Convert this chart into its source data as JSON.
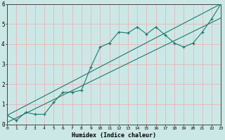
{
  "xlabel": "Humidex (Indice chaleur)",
  "xlim": [
    0,
    23
  ],
  "ylim": [
    0,
    6
  ],
  "xticks": [
    0,
    1,
    2,
    3,
    4,
    5,
    6,
    7,
    8,
    9,
    10,
    11,
    12,
    13,
    14,
    15,
    16,
    17,
    18,
    19,
    20,
    21,
    22,
    23
  ],
  "yticks": [
    0,
    1,
    2,
    3,
    4,
    5,
    6
  ],
  "bg_color": "#cce8e6",
  "grid_color": "#e8b4b8",
  "line_color": "#1a7a6e",
  "wavy_x": [
    0,
    1,
    2,
    3,
    4,
    5,
    6,
    7,
    8,
    9,
    10,
    11,
    12,
    13,
    14,
    15,
    16,
    17,
    18,
    19,
    20,
    21,
    22,
    23
  ],
  "wavy_y": [
    0.45,
    0.2,
    0.6,
    0.5,
    0.5,
    1.1,
    1.6,
    1.6,
    1.7,
    2.85,
    3.85,
    4.05,
    4.6,
    4.55,
    4.85,
    4.5,
    4.85,
    4.45,
    4.05,
    3.85,
    4.05,
    4.6,
    5.25,
    6.0
  ],
  "trend1_x": [
    0,
    23
  ],
  "trend1_y": [
    0.45,
    6.0
  ],
  "trend2_x": [
    0,
    23
  ],
  "trend2_y": [
    0.1,
    5.3
  ]
}
